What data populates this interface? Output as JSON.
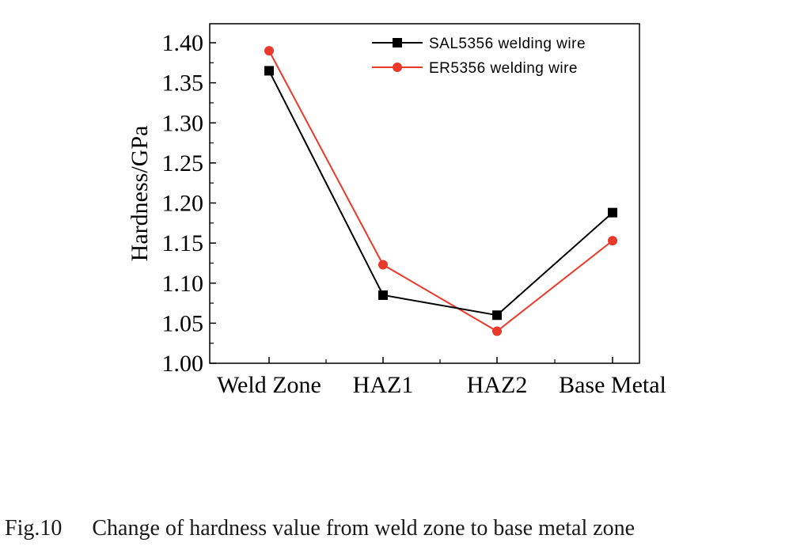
{
  "chart_data": {
    "type": "line",
    "categories": [
      "Weld Zone",
      "HAZ1",
      "HAZ2",
      "Base Metal"
    ],
    "ylabel": "Hardness/GPa",
    "ylim": [
      1.0,
      1.42
    ],
    "yticks": [
      "1.00",
      "1.05",
      "1.10",
      "1.15",
      "1.20",
      "1.25",
      "1.30",
      "1.35",
      "1.40"
    ],
    "legend_position": "top-right",
    "series": [
      {
        "name": "SAL5356 welding wire",
        "values": [
          1.365,
          1.085,
          1.06,
          1.188
        ],
        "color": "#000000",
        "marker": "square"
      },
      {
        "name": "ER5356  welding wire",
        "values": [
          1.39,
          1.123,
          1.04,
          1.153
        ],
        "color": "#e8392a",
        "marker": "circle"
      }
    ]
  },
  "caption": {
    "figure_number": "Fig.10",
    "text": "Change of hardness value from weld zone to base metal zone"
  }
}
